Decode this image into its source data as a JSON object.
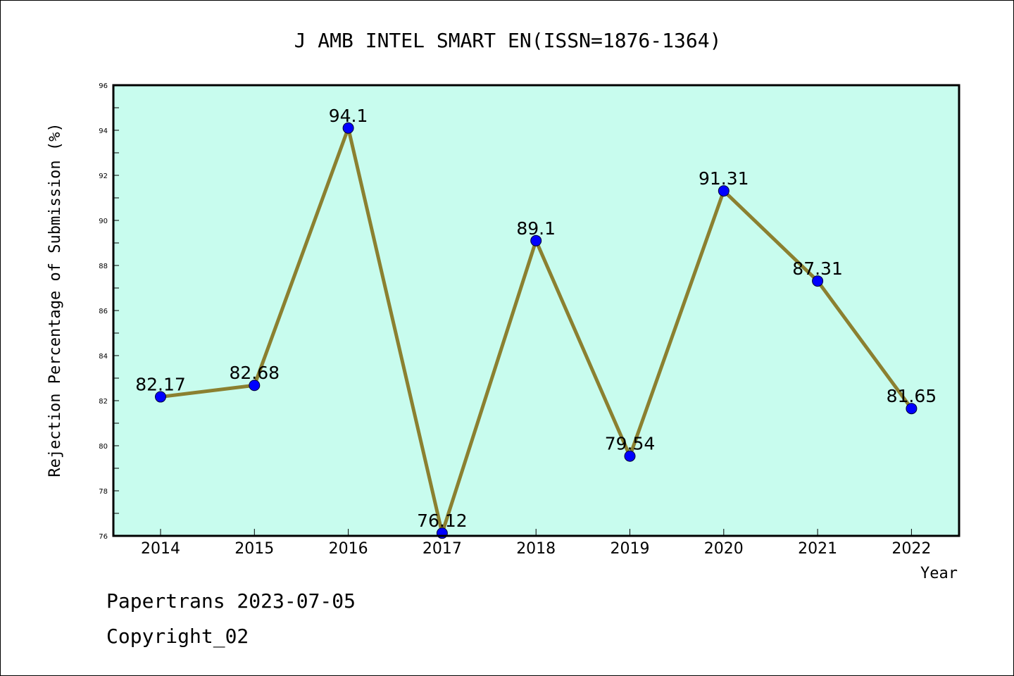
{
  "chart_data": {
    "type": "line",
    "title": "J AMB INTEL SMART EN(ISSN=1876-1364)",
    "xlabel": "Year",
    "ylabel": "Rejection Percentage of Submission (%)",
    "categories": [
      "2014",
      "2015",
      "2016",
      "2017",
      "2018",
      "2019",
      "2020",
      "2021",
      "2022"
    ],
    "values": [
      82.17,
      82.68,
      94.1,
      76.12,
      89.1,
      79.54,
      91.31,
      87.31,
      81.65
    ],
    "data_labels": [
      "82.17",
      "82.68",
      "94.1",
      "76.12",
      "89.1",
      "79.54",
      "91.31",
      "87.31",
      "81.65"
    ],
    "ylim": [
      76,
      96
    ],
    "yticks": [
      76,
      78,
      80,
      82,
      84,
      86,
      88,
      90,
      92,
      94,
      96
    ],
    "grid": false,
    "colors": {
      "plot_background": "#c8fcee",
      "line": "#8b8030",
      "marker": "#0000ff"
    }
  },
  "footer": {
    "line1": "Papertrans 2023-07-05",
    "line2": "Copyright_02"
  }
}
